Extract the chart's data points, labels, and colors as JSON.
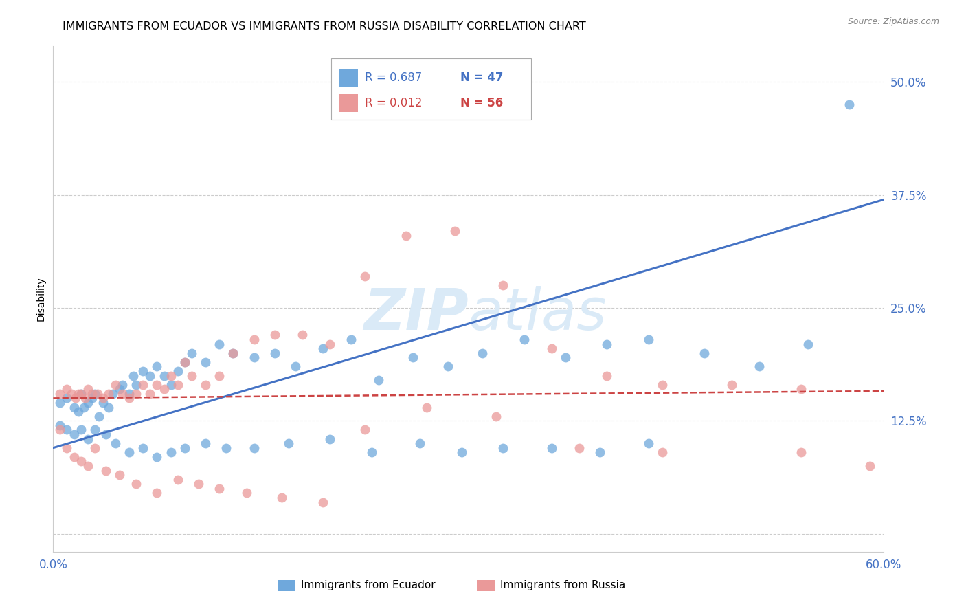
{
  "title": "IMMIGRANTS FROM ECUADOR VS IMMIGRANTS FROM RUSSIA DISABILITY CORRELATION CHART",
  "source": "Source: ZipAtlas.com",
  "ylabel": "Disability",
  "xlim": [
    0.0,
    0.6
  ],
  "ylim": [
    -0.02,
    0.54
  ],
  "yticks": [
    0.0,
    0.125,
    0.25,
    0.375,
    0.5
  ],
  "ytick_labels": [
    "",
    "12.5%",
    "25.0%",
    "37.5%",
    "50.0%"
  ],
  "xticks": [
    0.0,
    0.1,
    0.2,
    0.3,
    0.4,
    0.5,
    0.6
  ],
  "xtick_labels": [
    "0.0%",
    "",
    "",
    "",
    "",
    "",
    "60.0%"
  ],
  "legend_r1": "R = 0.687",
  "legend_n1": "N = 47",
  "legend_r2": "R = 0.012",
  "legend_n2": "N = 56",
  "ecuador_color": "#6fa8dc",
  "russia_color": "#ea9999",
  "ecuador_line_color": "#4472c4",
  "russia_line_color": "#cc4444",
  "watermark_color": "#daeaf7",
  "ecuador_scatter_x": [
    0.005,
    0.01,
    0.015,
    0.018,
    0.02,
    0.022,
    0.025,
    0.028,
    0.03,
    0.033,
    0.036,
    0.04,
    0.043,
    0.048,
    0.05,
    0.055,
    0.058,
    0.06,
    0.065,
    0.07,
    0.075,
    0.08,
    0.085,
    0.09,
    0.095,
    0.1,
    0.11,
    0.12,
    0.13,
    0.145,
    0.16,
    0.175,
    0.195,
    0.215,
    0.235,
    0.26,
    0.285,
    0.31,
    0.34,
    0.37,
    0.4,
    0.43,
    0.47,
    0.51,
    0.545,
    0.575
  ],
  "ecuador_scatter_y": [
    0.145,
    0.15,
    0.14,
    0.135,
    0.155,
    0.14,
    0.145,
    0.15,
    0.155,
    0.13,
    0.145,
    0.14,
    0.155,
    0.16,
    0.165,
    0.155,
    0.175,
    0.165,
    0.18,
    0.175,
    0.185,
    0.175,
    0.165,
    0.18,
    0.19,
    0.2,
    0.19,
    0.21,
    0.2,
    0.195,
    0.2,
    0.185,
    0.205,
    0.215,
    0.17,
    0.195,
    0.185,
    0.2,
    0.215,
    0.195,
    0.21,
    0.215,
    0.2,
    0.185,
    0.21,
    0.475
  ],
  "ecuador_scatter_x2": [
    0.005,
    0.01,
    0.015,
    0.02,
    0.025,
    0.03,
    0.038,
    0.045,
    0.055,
    0.065,
    0.075,
    0.085,
    0.095,
    0.11,
    0.125,
    0.145,
    0.17,
    0.2,
    0.23,
    0.265,
    0.295,
    0.325,
    0.36,
    0.395,
    0.43
  ],
  "ecuador_scatter_y2": [
    0.12,
    0.115,
    0.11,
    0.115,
    0.105,
    0.115,
    0.11,
    0.1,
    0.09,
    0.095,
    0.085,
    0.09,
    0.095,
    0.1,
    0.095,
    0.095,
    0.1,
    0.105,
    0.09,
    0.1,
    0.09,
    0.095,
    0.095,
    0.09,
    0.1
  ],
  "russia_scatter_x": [
    0.005,
    0.01,
    0.013,
    0.016,
    0.018,
    0.02,
    0.023,
    0.025,
    0.028,
    0.032,
    0.036,
    0.04,
    0.045,
    0.05,
    0.055,
    0.06,
    0.065,
    0.07,
    0.075,
    0.08,
    0.085,
    0.09,
    0.095,
    0.1,
    0.11,
    0.12,
    0.13,
    0.145,
    0.16,
    0.18,
    0.2,
    0.225,
    0.255,
    0.29,
    0.325,
    0.36,
    0.4,
    0.44,
    0.49,
    0.54
  ],
  "russia_scatter_y": [
    0.155,
    0.16,
    0.155,
    0.15,
    0.155,
    0.155,
    0.15,
    0.16,
    0.155,
    0.155,
    0.15,
    0.155,
    0.165,
    0.155,
    0.15,
    0.155,
    0.165,
    0.155,
    0.165,
    0.16,
    0.175,
    0.165,
    0.19,
    0.175,
    0.165,
    0.175,
    0.2,
    0.215,
    0.22,
    0.22,
    0.21,
    0.285,
    0.33,
    0.335,
    0.275,
    0.205,
    0.175,
    0.165,
    0.165,
    0.16
  ],
  "russia_scatter_x2": [
    0.005,
    0.01,
    0.015,
    0.02,
    0.025,
    0.03,
    0.038,
    0.048,
    0.06,
    0.075,
    0.09,
    0.105,
    0.12,
    0.14,
    0.165,
    0.195
  ],
  "russia_scatter_y2": [
    0.115,
    0.095,
    0.085,
    0.08,
    0.075,
    0.095,
    0.07,
    0.065,
    0.055,
    0.045,
    0.06,
    0.055,
    0.05,
    0.045,
    0.04,
    0.035
  ],
  "russia_scatter_x3": [
    0.225,
    0.27,
    0.32,
    0.38,
    0.44,
    0.54,
    0.59
  ],
  "russia_scatter_y3": [
    0.115,
    0.14,
    0.13,
    0.095,
    0.09,
    0.09,
    0.075
  ],
  "ecuador_trend_x": [
    0.0,
    0.6
  ],
  "ecuador_trend_y": [
    0.095,
    0.37
  ],
  "russia_trend_x": [
    0.0,
    0.6
  ],
  "russia_trend_y": [
    0.15,
    0.158
  ],
  "background_color": "#ffffff",
  "grid_color": "#cccccc",
  "tick_label_color": "#4472c4",
  "title_fontsize": 11.5,
  "axis_label_fontsize": 10
}
